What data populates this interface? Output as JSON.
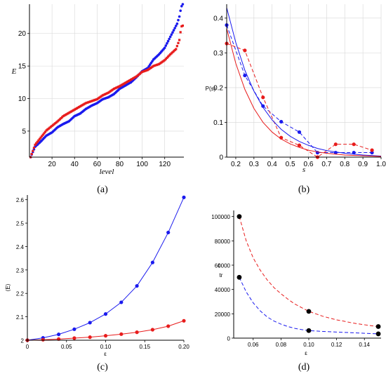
{
  "colors": {
    "blue": "#1a1aee",
    "red": "#e81c1c",
    "grid": "#d6d6d6"
  },
  "chart_data": [
    {
      "panel": "(a)",
      "type": "scatter",
      "xlabel": "level",
      "ylabel": "E",
      "xlim": [
        0,
        137
      ],
      "ylim": [
        1,
        24.5
      ],
      "xticks": [
        20,
        40,
        60,
        80,
        100,
        120
      ],
      "yticks": [
        5,
        10,
        15,
        20
      ],
      "grid": true,
      "series": [
        {
          "color": "blue",
          "marker": "circle",
          "x": [
            1,
            5,
            10,
            15,
            20,
            25,
            30,
            35,
            40,
            45,
            50,
            55,
            60,
            65,
            70,
            75,
            80,
            85,
            90,
            95,
            100,
            105,
            110,
            115,
            120,
            125,
            128,
            131,
            133,
            134,
            135,
            136
          ],
          "y": [
            1.0,
            2.6,
            3.4,
            4.3,
            4.8,
            5.6,
            6.1,
            6.5,
            7.3,
            7.7,
            8.4,
            8.9,
            9.3,
            9.9,
            10.2,
            10.7,
            11.5,
            12.0,
            12.5,
            13.3,
            14.2,
            14.7,
            16.0,
            16.8,
            17.8,
            19.5,
            20.5,
            21.5,
            22.6,
            23.5,
            24.2,
            24.5
          ]
        },
        {
          "color": "red",
          "marker": "square",
          "x": [
            1,
            5,
            10,
            15,
            20,
            25,
            30,
            35,
            40,
            45,
            50,
            55,
            60,
            65,
            70,
            75,
            80,
            85,
            90,
            95,
            100,
            105,
            110,
            115,
            120,
            125,
            130,
            133,
            134,
            135,
            136
          ],
          "y": [
            1.0,
            2.9,
            4.0,
            5.1,
            5.8,
            6.5,
            7.3,
            7.8,
            8.3,
            8.8,
            9.3,
            9.6,
            9.9,
            10.5,
            10.9,
            11.5,
            11.9,
            12.4,
            12.9,
            13.4,
            14.1,
            14.4,
            15.0,
            15.3,
            15.9,
            16.8,
            17.6,
            19.0,
            20.2,
            21.1,
            21.2
          ]
        }
      ]
    },
    {
      "panel": "(b)",
      "type": "line",
      "xlabel": "s",
      "ylabel": "P(s)",
      "xlim": [
        0.15,
        1.0
      ],
      "ylim": [
        0,
        0.44
      ],
      "xticks": [
        0.2,
        0.3,
        0.4,
        0.5,
        0.6,
        0.7,
        0.8,
        0.9,
        1.0
      ],
      "xticklabels": [
        "0.2",
        "0.3",
        "0.4",
        "0.5",
        "0.6",
        "0.7",
        "0.8",
        "0.9",
        "1.0"
      ],
      "yticks": [
        0,
        0.1,
        0.2,
        0.3,
        0.4
      ],
      "yticklabels": [
        "0",
        "0.1",
        "0.2",
        "0.3",
        "0.4"
      ],
      "grid": true,
      "series": [
        {
          "color": "blue",
          "style": "dashed",
          "marker": "circle",
          "x": [
            0.15,
            0.25,
            0.35,
            0.45,
            0.55,
            0.65,
            0.75,
            0.85,
            0.95
          ],
          "y": [
            0.38,
            0.235,
            0.147,
            0.102,
            0.072,
            0.013,
            0.013,
            0.013,
            0.013
          ]
        },
        {
          "color": "red",
          "style": "dashed",
          "marker": "circle",
          "x": [
            0.15,
            0.25,
            0.35,
            0.45,
            0.55,
            0.65,
            0.75,
            0.85,
            0.95
          ],
          "y": [
            0.327,
            0.307,
            0.172,
            0.056,
            0.034,
            0.0,
            0.037,
            0.037,
            0.02
          ]
        },
        {
          "color": "blue",
          "style": "solid",
          "x": [
            0.15,
            0.2,
            0.25,
            0.3,
            0.35,
            0.4,
            0.45,
            0.5,
            0.55,
            0.6,
            0.65,
            0.7,
            0.8,
            0.9,
            1.0
          ],
          "y": [
            0.43,
            0.33,
            0.25,
            0.19,
            0.143,
            0.107,
            0.08,
            0.06,
            0.045,
            0.034,
            0.025,
            0.019,
            0.011,
            0.006,
            0.003
          ]
        },
        {
          "color": "red",
          "style": "solid",
          "x": [
            0.15,
            0.2,
            0.25,
            0.3,
            0.35,
            0.4,
            0.45,
            0.5,
            0.55,
            0.6,
            0.65,
            0.7,
            0.8,
            0.9,
            1.0
          ],
          "y": [
            0.37,
            0.27,
            0.195,
            0.14,
            0.1,
            0.072,
            0.052,
            0.038,
            0.028,
            0.02,
            0.015,
            0.011,
            0.006,
            0.004,
            0.002
          ]
        }
      ]
    },
    {
      "panel": "(c)",
      "type": "line",
      "xlabel": "ε",
      "ylabel": "⟨E⟩",
      "xlim": [
        0,
        0.2
      ],
      "ylim": [
        2.0,
        2.62
      ],
      "xticks": [
        0,
        0.05,
        0.1,
        0.15,
        0.2
      ],
      "xticklabels": [
        "0",
        "0.05",
        "0.10",
        "0.15",
        "0.20"
      ],
      "yticks": [
        2,
        2.1,
        2.2,
        2.3,
        2.4,
        2.5,
        2.6
      ],
      "yticklabels": [
        "2",
        "2.1",
        "2.2",
        "2.3",
        "2.4",
        "2.5",
        "2.6"
      ],
      "grid": false,
      "series": [
        {
          "color": "blue",
          "style": "solid",
          "marker": "circle",
          "x": [
            0,
            0.02,
            0.04,
            0.06,
            0.08,
            0.1,
            0.12,
            0.14,
            0.16,
            0.18,
            0.2
          ],
          "y": [
            2.0,
            2.01,
            2.025,
            2.047,
            2.075,
            2.112,
            2.162,
            2.232,
            2.332,
            2.46,
            2.61
          ]
        },
        {
          "color": "red",
          "style": "solid",
          "marker": "circle",
          "x": [
            0,
            0.02,
            0.04,
            0.06,
            0.08,
            0.1,
            0.12,
            0.14,
            0.16,
            0.18,
            0.2
          ],
          "y": [
            2.0,
            2.002,
            2.005,
            2.009,
            2.013,
            2.019,
            2.026,
            2.034,
            2.045,
            2.06,
            2.083
          ]
        }
      ]
    },
    {
      "panel": "(d)",
      "type": "line",
      "xlabel": "ε",
      "ylabel": "t",
      "ylabel_sub": "tr",
      "xlim": [
        0.046,
        0.152
      ],
      "ylim": [
        0,
        105000
      ],
      "xticks": [
        0.06,
        0.08,
        0.1,
        0.12,
        0.14
      ],
      "xticklabels": [
        "0.06",
        "0.08",
        "0.10",
        "0.12",
        "0.14"
      ],
      "yticks": [
        0,
        20000,
        40000,
        60000,
        80000,
        100000
      ],
      "yticklabels": [
        "0",
        "20000",
        "40000",
        "60000",
        "80000",
        "100000"
      ],
      "grid": false,
      "series": [
        {
          "color": "red",
          "style": "dashed",
          "markers_x": [
            0.05,
            0.1,
            0.15
          ],
          "x": [
            0.05,
            0.055,
            0.06,
            0.065,
            0.07,
            0.075,
            0.08,
            0.085,
            0.09,
            0.095,
            0.1,
            0.105,
            0.11,
            0.115,
            0.12,
            0.125,
            0.13,
            0.135,
            0.14,
            0.145,
            0.15
          ],
          "y": [
            100000,
            80000,
            66000,
            56000,
            48000,
            41500,
            36500,
            32000,
            28000,
            25000,
            22000,
            20000,
            18000,
            16500,
            15000,
            14000,
            12800,
            11800,
            11000,
            10200,
            9500
          ]
        },
        {
          "color": "blue",
          "style": "dashed",
          "markers_x": [
            0.05,
            0.1,
            0.15
          ],
          "x": [
            0.05,
            0.055,
            0.06,
            0.065,
            0.07,
            0.075,
            0.08,
            0.085,
            0.09,
            0.095,
            0.1,
            0.11,
            0.12,
            0.13,
            0.14,
            0.15
          ],
          "y": [
            50000,
            38000,
            29000,
            22500,
            17500,
            14000,
            11500,
            9500,
            8000,
            7000,
            6200,
            5500,
            5000,
            4500,
            4000,
            3500
          ]
        }
      ]
    }
  ]
}
